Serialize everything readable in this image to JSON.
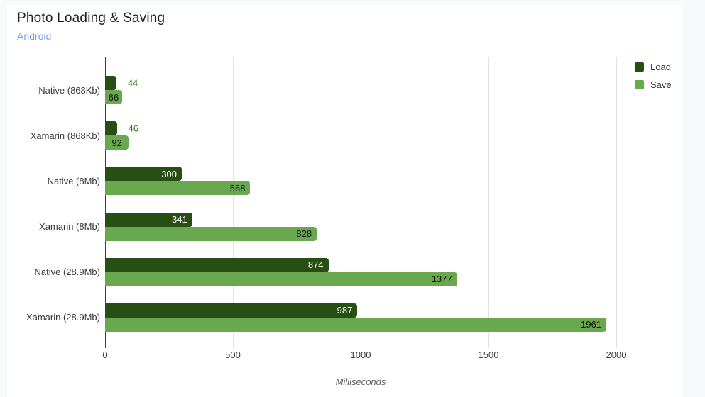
{
  "header": {
    "title": "Photo Loading & Saving",
    "subtitle": "Android"
  },
  "chart_data": {
    "type": "bar",
    "orientation": "horizontal",
    "title": "Photo Loading & Saving",
    "subtitle": "Android",
    "categories": [
      "Native (868Kb)",
      "Xamarin (868Kb)",
      "Native (8Mb)",
      "Xamarin (8Mb)",
      "Native (28.9Mb)",
      "Xamarin (28.9Mb)"
    ],
    "series": [
      {
        "name": "Load",
        "color": "#274e13",
        "label_inside_color": "#ffffff",
        "values": [
          44,
          46,
          300,
          341,
          874,
          987
        ]
      },
      {
        "name": "Save",
        "color": "#6aa84f",
        "label_inside_color": "#111111",
        "values": [
          66,
          92,
          568,
          828,
          1377,
          1961
        ]
      }
    ],
    "xlabel": "Milliseconds",
    "xlim": [
      0,
      2000
    ],
    "xticks": [
      0,
      500,
      1000,
      1500,
      2000
    ],
    "grid": true,
    "legend_position": "top-right",
    "data_labels": true,
    "outside_label_color": "#38761d"
  },
  "colors": {
    "page_background": "#f6fafd",
    "card_background": "#ffffff",
    "axis_line": "#424242",
    "gridline": "#e2e2e2",
    "subtitle_blue": "#7d9ee8",
    "load_dark_green": "#274e13",
    "save_light_green": "#6aa84f"
  }
}
